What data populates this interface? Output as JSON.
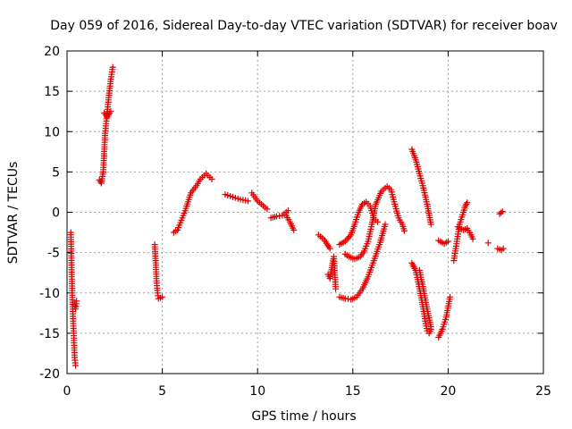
{
  "chart_data": {
    "type": "scatter",
    "title": "Day 059 of 2016, Sidereal Day-to-day VTEC variation (SDTVAR) for receiver boav",
    "xlabel": "GPS time / hours",
    "ylabel": "SDTVAR / TECUs",
    "xlim": [
      0,
      25
    ],
    "ylim": [
      -20,
      20
    ],
    "xticks": [
      0,
      5,
      10,
      15,
      20,
      25
    ],
    "yticks": [
      -20,
      -15,
      -10,
      -5,
      0,
      5,
      10,
      15,
      20
    ],
    "xtick_labels": [
      "0",
      "5",
      "10",
      "15",
      "20",
      "25"
    ],
    "ytick_labels": [
      "-20",
      "-15",
      "-10",
      "-5",
      "0",
      "5",
      "10",
      "15",
      "20"
    ],
    "grid": true,
    "marker": "+",
    "color": "#e00000",
    "tracks": [
      {
        "name": "arc-01",
        "x": [
          0.2,
          0.25,
          0.3,
          0.35,
          0.4,
          0.45
        ],
        "y": [
          -2.5,
          -8,
          -12,
          -15,
          -18,
          -19
        ]
      },
      {
        "name": "arc-02",
        "x": [
          0.4,
          0.45,
          0.5
        ],
        "y": [
          -11.5,
          -12,
          -11
        ]
      },
      {
        "name": "arc-03",
        "x": [
          1.7,
          1.8,
          1.9,
          2.0,
          2.1,
          2.2,
          2.3,
          2.4
        ],
        "y": [
          4,
          3.6,
          5,
          9.8,
          12.2,
          14.5,
          16.5,
          18
        ]
      },
      {
        "name": "arc-04",
        "x": [
          1.95,
          2.1,
          2.3
        ],
        "y": [
          12.3,
          11.8,
          12.5
        ]
      },
      {
        "name": "arc-05",
        "x": [
          4.6,
          4.65,
          4.7,
          4.75,
          4.8,
          5.0
        ],
        "y": [
          -4,
          -6,
          -8.5,
          -10,
          -10.7,
          -10.5
        ]
      },
      {
        "name": "arc-06",
        "x": [
          5.6,
          5.8,
          6.0,
          6.2,
          6.5,
          6.8,
          7.0,
          7.3,
          7.6
        ],
        "y": [
          -2.5,
          -2.2,
          -1,
          0.2,
          2.4,
          3.3,
          4.1,
          4.8,
          4.1
        ]
      },
      {
        "name": "arc-07",
        "x": [
          8.3,
          8.7,
          9.1,
          9.5
        ],
        "y": [
          2.2,
          1.9,
          1.6,
          1.4
        ]
      },
      {
        "name": "arc-08",
        "x": [
          9.7,
          10.0,
          10.3,
          10.5
        ],
        "y": [
          2.4,
          1.4,
          0.8,
          0.4
        ]
      },
      {
        "name": "arc-09",
        "x": [
          10.7,
          11.0,
          11.3,
          11.6
        ],
        "y": [
          -0.7,
          -0.5,
          -0.4,
          0.2
        ]
      },
      {
        "name": "arc-10",
        "x": [
          11.5,
          11.7,
          11.9
        ],
        "y": [
          -0.4,
          -1.2,
          -2.2
        ]
      },
      {
        "name": "arc-11",
        "x": [
          13.2,
          13.5,
          13.8
        ],
        "y": [
          -2.8,
          -3.4,
          -4.5
        ]
      },
      {
        "name": "arc-12",
        "x": [
          13.7,
          13.8,
          14.0,
          14.1
        ],
        "y": [
          -7.7,
          -8.2,
          -5.5,
          -9.5
        ]
      },
      {
        "name": "arc-13",
        "x": [
          14.3,
          14.6,
          14.9,
          15.1,
          15.3,
          15.5,
          15.7,
          15.9,
          16.1,
          16.3
        ],
        "y": [
          -4,
          -3.6,
          -2.8,
          -1.5,
          0,
          1,
          1.3,
          0.8,
          -0.7,
          -1.2
        ]
      },
      {
        "name": "arc-14",
        "x": [
          14.6,
          14.8,
          15.1,
          15.4,
          15.6,
          15.8,
          16.0,
          16.2,
          16.5,
          16.8,
          17.0,
          17.2,
          17.4,
          17.6,
          17.7
        ],
        "y": [
          -5.2,
          -5.5,
          -5.8,
          -5.5,
          -4.8,
          -3.6,
          -1.5,
          1,
          2.6,
          3.2,
          2.8,
          1,
          -0.7,
          -1.5,
          -2.3
        ]
      },
      {
        "name": "arc-15",
        "x": [
          14.3,
          14.6,
          14.9,
          15.2,
          15.5,
          15.8,
          16.1,
          16.4,
          16.7
        ],
        "y": [
          -10.5,
          -10.7,
          -10.8,
          -10.5,
          -9.5,
          -8,
          -6,
          -4,
          -1.5
        ]
      },
      {
        "name": "arc-16",
        "x": [
          18.1,
          18.3,
          18.5,
          18.7,
          18.9,
          19.1
        ],
        "y": [
          7.8,
          6.5,
          4.8,
          3,
          1,
          -1.5
        ]
      },
      {
        "name": "arc-17",
        "x": [
          18.1,
          18.3,
          18.5,
          18.7,
          18.8,
          18.9,
          19.0,
          19.1
        ],
        "y": [
          -6.3,
          -7.2,
          -9.5,
          -12,
          -13.5,
          -14.7,
          -15,
          -14.5
        ]
      },
      {
        "name": "arc-18",
        "x": [
          18.5,
          18.7,
          18.9,
          19.1
        ],
        "y": [
          -7.2,
          -9.5,
          -12,
          -14.2
        ]
      },
      {
        "name": "arc-19",
        "x": [
          19.5,
          19.7,
          19.9,
          20.1
        ],
        "y": [
          -15.5,
          -14.5,
          -13,
          -10.5
        ]
      },
      {
        "name": "arc-20",
        "x": [
          19.5,
          19.8,
          20.0
        ],
        "y": [
          -3.5,
          -3.9,
          -3.6
        ]
      },
      {
        "name": "arc-21",
        "x": [
          20.3,
          20.4,
          20.5,
          20.6,
          20.8,
          20.9,
          21.0
        ],
        "y": [
          -6,
          -4.5,
          -3,
          -1.5,
          0,
          0.8,
          1.2
        ]
      },
      {
        "name": "arc-22",
        "x": [
          20.5,
          20.8,
          21.0,
          21.2,
          21.3
        ],
        "y": [
          -1.8,
          -2.2,
          -2,
          -2.8,
          -3.3
        ]
      },
      {
        "name": "arc-23",
        "x": [
          22.1
        ],
        "y": [
          -3.8
        ]
      },
      {
        "name": "arc-24",
        "x": [
          22.6,
          22.8,
          22.9
        ],
        "y": [
          -4.5,
          -4.7,
          -4.5
        ]
      },
      {
        "name": "arc-25",
        "x": [
          22.7,
          22.85
        ],
        "y": [
          -0.2,
          0.1
        ]
      }
    ]
  }
}
